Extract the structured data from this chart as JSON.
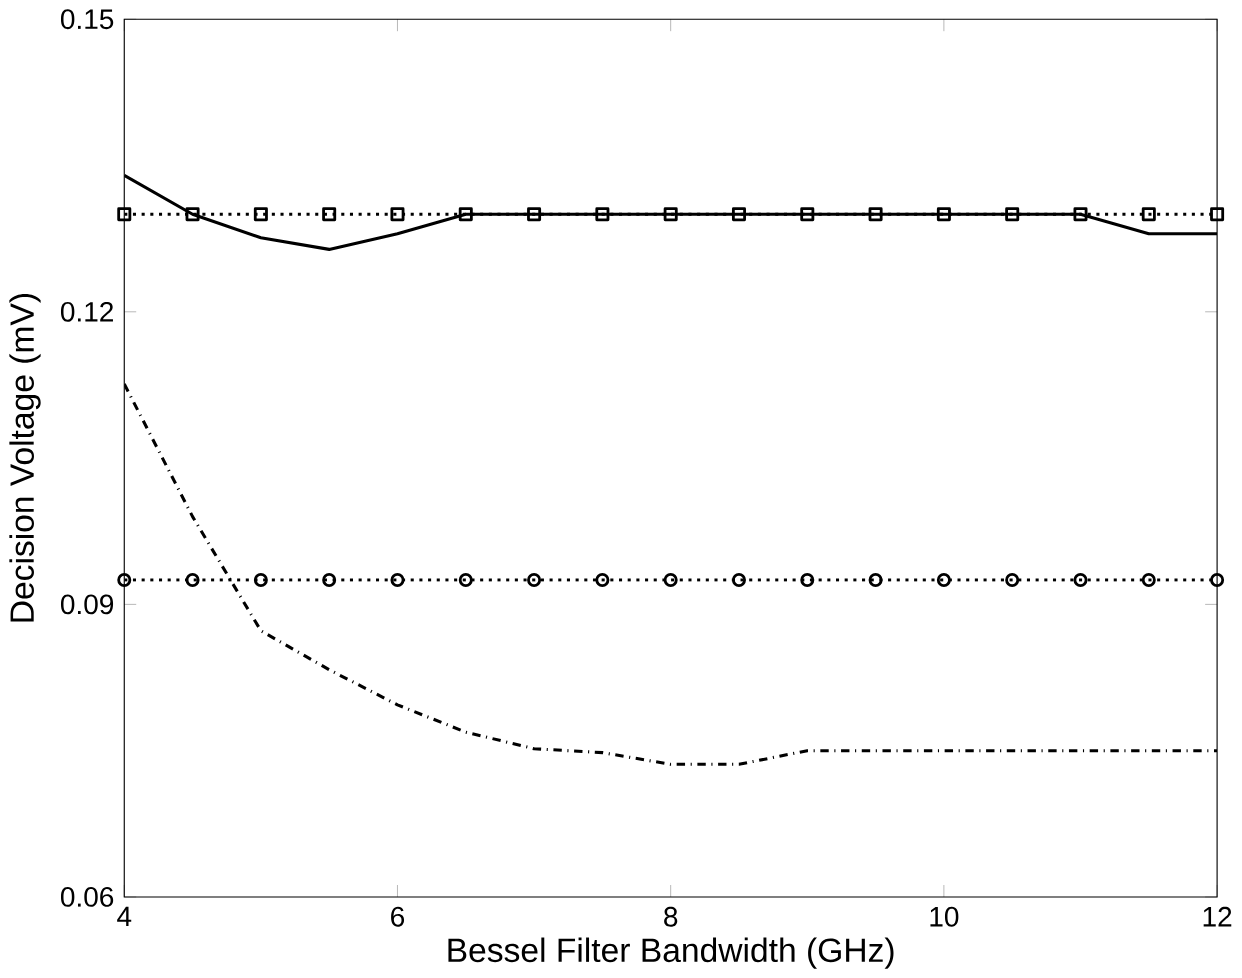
{
  "chart_data": {
    "type": "line",
    "xlabel": "Bessel Filter Bandwidth (GHz)",
    "ylabel": "Decision Voltage (mV)",
    "xlim": [
      4,
      12
    ],
    "ylim": [
      0.06,
      0.15
    ],
    "xticks": [
      4,
      6,
      8,
      10,
      12
    ],
    "yticks": [
      0.06,
      0.09,
      0.12,
      0.15
    ],
    "grid": false,
    "series": [
      {
        "color": "#000000",
        "line_style": "solid",
        "marker": "none",
        "x": [
          4,
          4.5,
          5,
          5.5,
          6,
          6.5,
          11,
          11.5,
          12
        ],
        "values": [
          0.134,
          0.13,
          0.1276,
          0.1264,
          0.128,
          0.13,
          0.13,
          0.128,
          0.128
        ]
      },
      {
        "color": "#000000",
        "line_style": "dotted",
        "marker": "square",
        "x": [
          4,
          4.5,
          5,
          5.5,
          6,
          6.5,
          7,
          7.5,
          8,
          8.5,
          9,
          9.5,
          10,
          10.5,
          11,
          11.5,
          12
        ],
        "values": [
          0.13,
          0.13,
          0.13,
          0.13,
          0.13,
          0.13,
          0.13,
          0.13,
          0.13,
          0.13,
          0.13,
          0.13,
          0.13,
          0.13,
          0.13,
          0.13,
          0.13
        ]
      },
      {
        "color": "#000000",
        "line_style": "dotted",
        "marker": "circle",
        "x": [
          4,
          4.5,
          5,
          5.5,
          6,
          6.5,
          7,
          7.5,
          8,
          8.5,
          9,
          9.5,
          10,
          10.5,
          11,
          11.5,
          12
        ],
        "values": [
          0.0925,
          0.0925,
          0.0925,
          0.0925,
          0.0925,
          0.0925,
          0.0925,
          0.0925,
          0.0925,
          0.0925,
          0.0925,
          0.0925,
          0.0925,
          0.0925,
          0.0925,
          0.0925,
          0.0925
        ]
      },
      {
        "color": "#000000",
        "line_style": "dashdot",
        "marker": "none",
        "x": [
          4,
          4.5,
          5,
          5.5,
          6,
          6.5,
          7,
          7.5,
          8,
          8.5,
          9,
          9.5,
          10,
          10.5,
          11,
          11.5,
          12
        ],
        "values": [
          0.1126,
          0.099,
          0.0873,
          0.0833,
          0.0797,
          0.0769,
          0.0752,
          0.0748,
          0.0736,
          0.0736,
          0.075,
          0.075,
          0.075,
          0.075,
          0.075,
          0.075,
          0.075
        ]
      }
    ]
  }
}
